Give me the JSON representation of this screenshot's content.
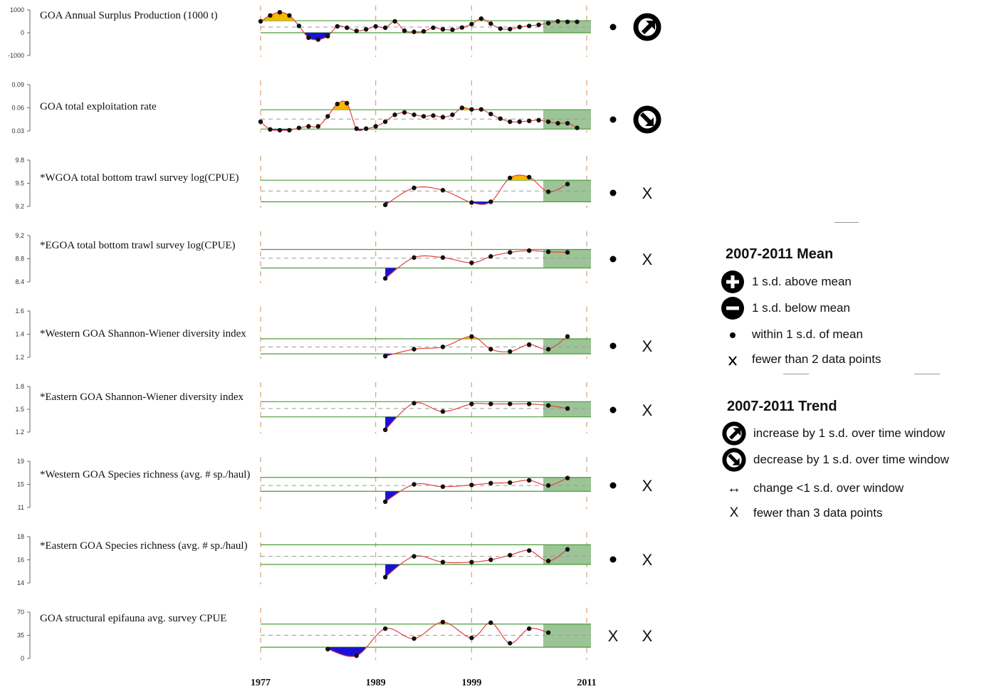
{
  "colors": {
    "above": "#f5b800",
    "below": "#1b10d8",
    "line": "#e0443c",
    "point": "#111111",
    "mean_line": "#4a9b3a",
    "dash": "#999999",
    "vline": "#d9a070",
    "window": "#9cc497"
  },
  "years": {
    "tick_labels": [
      "1977",
      "1989",
      "1999",
      "2011"
    ],
    "window": [
      2007,
      2011
    ]
  },
  "chart_data": [
    {
      "type": "line",
      "title": "GOA Annual Surplus Production (1000 t)",
      "yticks": [
        "1000",
        "0",
        "-1000"
      ],
      "ylim": [
        -1000,
        1000
      ],
      "mean": 250,
      "upper": 530,
      "lower": 0,
      "x": [
        1977,
        1978,
        1979,
        1980,
        1981,
        1982,
        1983,
        1984,
        1985,
        1986,
        1987,
        1988,
        1989,
        1990,
        1991,
        1992,
        1993,
        1994,
        1995,
        1996,
        1997,
        1998,
        1999,
        2000,
        2001,
        2002,
        2003,
        2004,
        2005,
        2006,
        2007,
        2008,
        2009,
        2010
      ],
      "y": [
        500,
        760,
        900,
        760,
        300,
        -220,
        -300,
        -150,
        280,
        220,
        80,
        150,
        280,
        220,
        500,
        90,
        40,
        60,
        220,
        150,
        130,
        230,
        380,
        620,
        400,
        180,
        160,
        250,
        300,
        350,
        420,
        500,
        480,
        480
      ],
      "status": [
        "•",
        "↗"
      ]
    },
    {
      "type": "line",
      "title": "GOA total exploitation rate",
      "yticks": [
        "0.09",
        "0.06",
        "0.03"
      ],
      "ylim": [
        0.03,
        0.09
      ],
      "mean": 0.0455,
      "upper": 0.0575,
      "lower": 0.0325,
      "x": [
        1977,
        1978,
        1979,
        1980,
        1981,
        1982,
        1983,
        1984,
        1985,
        1986,
        1987,
        1988,
        1989,
        1990,
        1991,
        1992,
        1993,
        1994,
        1995,
        1996,
        1997,
        1998,
        1999,
        2000,
        2001,
        2002,
        2003,
        2004,
        2005,
        2006,
        2007,
        2008,
        2009,
        2010
      ],
      "y": [
        0.042,
        0.032,
        0.031,
        0.031,
        0.034,
        0.036,
        0.036,
        0.049,
        0.065,
        0.066,
        0.033,
        0.033,
        0.036,
        0.042,
        0.051,
        0.054,
        0.051,
        0.049,
        0.05,
        0.048,
        0.051,
        0.06,
        0.058,
        0.058,
        0.052,
        0.046,
        0.042,
        0.042,
        0.043,
        0.044,
        0.042,
        0.04,
        0.04,
        0.034
      ],
      "status": [
        "•",
        "↘"
      ]
    },
    {
      "type": "line",
      "title": "*WGOA total bottom trawl survey log(CPUE)",
      "yticks": [
        "9.8",
        "9.5",
        "9.2"
      ],
      "ylim": [
        9.2,
        9.8
      ],
      "mean": 9.4,
      "upper": 9.54,
      "lower": 9.26,
      "x": [
        1990,
        1993,
        1996,
        1999,
        2001,
        2003,
        2005,
        2007,
        2009
      ],
      "y": [
        9.22,
        9.44,
        9.41,
        9.25,
        9.26,
        9.57,
        9.58,
        9.39,
        9.49
      ],
      "status": [
        "•",
        "X"
      ]
    },
    {
      "type": "line",
      "title": "*EGOA total bottom trawl survey log(CPUE)",
      "yticks": [
        "9.2",
        "8.8",
        "8.4"
      ],
      "ylim": [
        8.4,
        9.2
      ],
      "mean": 8.81,
      "upper": 8.96,
      "lower": 8.64,
      "x": [
        1990,
        1993,
        1996,
        1999,
        2001,
        2003,
        2005,
        2007,
        2009
      ],
      "y": [
        8.46,
        8.82,
        8.82,
        8.73,
        8.84,
        8.91,
        8.94,
        8.92,
        8.91
      ],
      "status": [
        "•",
        "X"
      ]
    },
    {
      "type": "line",
      "title": "*Western GOA Shannon-Wiener diversity index",
      "yticks": [
        "1.6",
        "1.4",
        "1.2"
      ],
      "ylim": [
        1.2,
        1.6
      ],
      "mean": 1.29,
      "upper": 1.36,
      "lower": 1.23,
      "x": [
        1990,
        1993,
        1996,
        1999,
        2001,
        2003,
        2005,
        2007,
        2009
      ],
      "y": [
        1.21,
        1.27,
        1.29,
        1.38,
        1.27,
        1.25,
        1.31,
        1.27,
        1.38
      ],
      "status": [
        "•",
        "X"
      ]
    },
    {
      "type": "line",
      "title": "*Eastern GOA Shannon-Wiener diversity index",
      "yticks": [
        "1.8",
        "1.5",
        "1.2"
      ],
      "ylim": [
        1.2,
        1.8
      ],
      "mean": 1.51,
      "upper": 1.6,
      "lower": 1.4,
      "x": [
        1990,
        1993,
        1996,
        1999,
        2001,
        2003,
        2005,
        2007,
        2009
      ],
      "y": [
        1.23,
        1.58,
        1.47,
        1.57,
        1.57,
        1.57,
        1.57,
        1.55,
        1.51
      ],
      "status": [
        "•",
        "X"
      ]
    },
    {
      "type": "line",
      "title": "*Western GOA Species richness (avg. # sp./haul)",
      "yticks": [
        "19",
        "15",
        "11"
      ],
      "ylim": [
        11,
        19
      ],
      "mean": 14.8,
      "upper": 16.2,
      "lower": 13.8,
      "x": [
        1990,
        1993,
        1996,
        1999,
        2001,
        2003,
        2005,
        2007,
        2009
      ],
      "y": [
        12.0,
        15.0,
        14.6,
        14.9,
        15.2,
        15.3,
        15.7,
        14.8,
        16.1
      ],
      "status": [
        "•",
        "X"
      ]
    },
    {
      "type": "line",
      "title": "*Eastern GOA Species richness (avg. # sp./haul)",
      "yticks": [
        "18",
        "16",
        "14"
      ],
      "ylim": [
        14,
        18
      ],
      "mean": 16.3,
      "upper": 17.3,
      "lower": 15.6,
      "x": [
        1990,
        1993,
        1996,
        1999,
        2001,
        2003,
        2005,
        2007,
        2009
      ],
      "y": [
        14.5,
        16.3,
        15.8,
        15.8,
        16.0,
        16.4,
        16.8,
        15.9,
        16.9
      ],
      "status": [
        "•",
        "X"
      ]
    },
    {
      "type": "line",
      "title": "GOA  structural epifauna avg. survey CPUE",
      "yticks": [
        "70",
        "35",
        "0"
      ],
      "ylim": [
        0,
        70
      ],
      "mean": 35,
      "upper": 52,
      "lower": 17,
      "x": [
        1984,
        1987,
        1990,
        1993,
        1996,
        1999,
        2001,
        2003,
        2005,
        2007
      ],
      "y": [
        14,
        4,
        45,
        30,
        55,
        31,
        54,
        23,
        45,
        39
      ],
      "status": [
        "X",
        "X"
      ]
    }
  ],
  "legend": {
    "mean": {
      "title": "2007-2011 Mean",
      "items": [
        {
          "icon": "plus-circle-icon",
          "label": "1 s.d. above mean"
        },
        {
          "icon": "minus-circle-icon",
          "label": "1 s.d. below mean"
        },
        {
          "icon": "dot-icon",
          "label": "within 1 s.d. of mean"
        },
        {
          "icon": "x-mark-icon",
          "label": "fewer than 2 data points"
        }
      ]
    },
    "trend": {
      "title": "2007-2011 Trend",
      "items": [
        {
          "icon": "increase-arrow-icon",
          "label": "increase by 1 s.d. over time window"
        },
        {
          "icon": "decrease-arrow-icon",
          "label": "decrease by 1 s.d. over time window"
        },
        {
          "icon": "double-arrow-icon",
          "label": "change <1 s.d. over window",
          "glyph": "↔"
        },
        {
          "icon": "x-mark-icon",
          "label": "fewer than 3 data points",
          "glyph": "X"
        }
      ]
    }
  }
}
